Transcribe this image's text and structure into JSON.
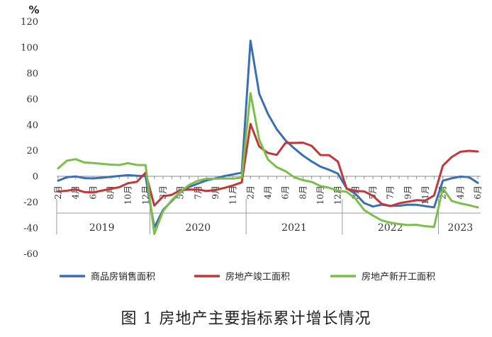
{
  "chart_data": {
    "type": "line",
    "unit_label": "%",
    "caption": "图 1  房地产主要指标累计增长情况",
    "ylim": [
      -60,
      120
    ],
    "yticks": [
      120,
      100,
      80,
      60,
      40,
      20,
      0,
      -20,
      -40,
      -60
    ],
    "x": [
      "2019-02",
      "2019-03",
      "2019-04",
      "2019-05",
      "2019-06",
      "2019-07",
      "2019-08",
      "2019-09",
      "2019-10",
      "2019-11",
      "2019-12",
      "2020-02",
      "2020-03",
      "2020-04",
      "2020-05",
      "2020-06",
      "2020-07",
      "2020-08",
      "2020-09",
      "2020-10",
      "2020-11",
      "2020-12",
      "2021-02",
      "2021-03",
      "2021-04",
      "2021-05",
      "2021-06",
      "2021-07",
      "2021-08",
      "2021-09",
      "2021-10",
      "2021-11",
      "2021-12",
      "2022-02",
      "2022-03",
      "2022-04",
      "2022-05",
      "2022-06",
      "2022-07",
      "2022-08",
      "2022-09",
      "2022-10",
      "2022-11",
      "2022-12",
      "2023-02",
      "2023-03",
      "2023-04",
      "2023-05",
      "2023-06"
    ],
    "month_labels": [
      {
        "i": 0,
        "text": "2月"
      },
      {
        "i": 2,
        "text": "4月"
      },
      {
        "i": 4,
        "text": "6月"
      },
      {
        "i": 6,
        "text": "8月"
      },
      {
        "i": 8,
        "text": "10月"
      },
      {
        "i": 10,
        "text": "12月"
      },
      {
        "i": 12,
        "text": "3月"
      },
      {
        "i": 14,
        "text": "5月"
      },
      {
        "i": 16,
        "text": "7月"
      },
      {
        "i": 18,
        "text": "9月"
      },
      {
        "i": 20,
        "text": "11月"
      },
      {
        "i": 22,
        "text": "2月"
      },
      {
        "i": 24,
        "text": "4月"
      },
      {
        "i": 26,
        "text": "6月"
      },
      {
        "i": 28,
        "text": "8月"
      },
      {
        "i": 30,
        "text": "10月"
      },
      {
        "i": 32,
        "text": "12月"
      },
      {
        "i": 34,
        "text": "3月"
      },
      {
        "i": 36,
        "text": "5月"
      },
      {
        "i": 38,
        "text": "7月"
      },
      {
        "i": 40,
        "text": "9月"
      },
      {
        "i": 42,
        "text": "11月"
      },
      {
        "i": 44,
        "text": "2月"
      },
      {
        "i": 46,
        "text": "4月"
      },
      {
        "i": 48,
        "text": "6月"
      }
    ],
    "year_groups": [
      {
        "label": "2019",
        "start": 0,
        "end": 10
      },
      {
        "label": "2020",
        "start": 11,
        "end": 21
      },
      {
        "label": "2021",
        "start": 22,
        "end": 32
      },
      {
        "label": "2022",
        "start": 33,
        "end": 43
      },
      {
        "label": "2023",
        "start": 44,
        "end": 48
      }
    ],
    "series": [
      {
        "name": "商品房销售面积",
        "color": "#3A6FB0",
        "values": [
          -3.6,
          -0.9,
          -0.3,
          -1.6,
          -1.8,
          -1.3,
          -0.6,
          0.1,
          0.7,
          0.2,
          -0.1,
          -39.9,
          -26.3,
          -19.3,
          -12.3,
          -8.4,
          -5.8,
          -3.3,
          -1.8,
          0.0,
          1.3,
          2.6,
          104.9,
          63.8,
          48.1,
          36.3,
          27.7,
          21.5,
          15.9,
          11.3,
          7.3,
          4.8,
          1.9,
          -9.6,
          -13.8,
          -20.9,
          -23.6,
          -22.2,
          -23.1,
          -23.0,
          -22.2,
          -22.3,
          -23.3,
          -24.3,
          -3.6,
          -1.8,
          -0.4,
          -0.9,
          -5.3
        ]
      },
      {
        "name": "房地产竣工面积",
        "color": "#C0393A",
        "values": [
          -11.9,
          -11.4,
          -10.3,
          -12.4,
          -12.7,
          -11.3,
          -10.0,
          -8.6,
          -5.5,
          -4.5,
          2.6,
          -22.9,
          -15.8,
          -14.5,
          -10.9,
          -10.5,
          -10.5,
          -11.6,
          -10.8,
          -9.2,
          -7.3,
          -4.9,
          40.4,
          22.9,
          17.9,
          16.4,
          25.7,
          25.7,
          25.9,
          23.4,
          16.3,
          16.2,
          11.2,
          -9.8,
          -11.5,
          -11.9,
          -15.3,
          -21.5,
          -23.3,
          -21.1,
          -19.9,
          -18.7,
          -19.0,
          -15.0,
          8.0,
          14.7,
          18.8,
          19.6,
          19.0
        ]
      },
      {
        "name": "房地产新开工面积",
        "color": "#7BBF4A",
        "values": [
          6.0,
          11.9,
          13.1,
          10.5,
          10.1,
          9.5,
          8.9,
          8.6,
          10.0,
          8.6,
          8.5,
          -44.9,
          -27.2,
          -18.6,
          -12.0,
          -6.8,
          -3.6,
          -2.1,
          -2.1,
          -1.8,
          -2.0,
          -1.2,
          64.3,
          28.2,
          12.8,
          6.9,
          3.8,
          -0.9,
          -3.2,
          -4.5,
          -7.7,
          -9.1,
          -11.4,
          -12.2,
          -17.5,
          -26.3,
          -30.6,
          -34.4,
          -36.1,
          -37.2,
          -38.0,
          -37.8,
          -38.9,
          -39.4,
          -9.4,
          -19.2,
          -21.2,
          -22.6,
          -24.3
        ]
      }
    ]
  }
}
